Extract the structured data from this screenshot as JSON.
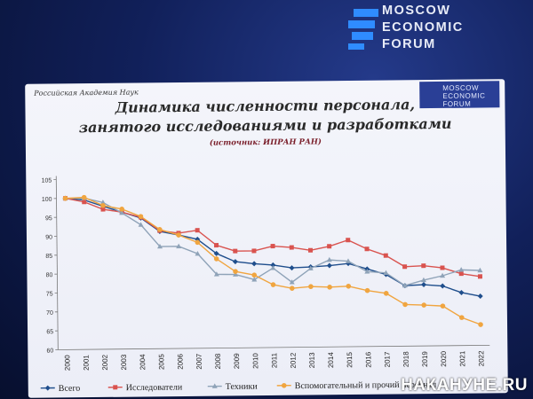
{
  "forum": {
    "line1": "MOSCOW",
    "line2": "ECONOMIC",
    "line3": "FORUM"
  },
  "slide": {
    "emblem": "Российская Академия Наук",
    "logo_line1": "MOSCOW",
    "logo_line2": "ECONOMIC",
    "logo_line3": "FORUM"
  },
  "watermark": "НАКАНУНЕ.RU",
  "chart_data": {
    "type": "line",
    "title": "Динамика численности персонала,",
    "title_line2": "занятого исследованиями и разработками",
    "subtitle": "(источник: ИПРАН РАН)",
    "x": [
      "2000",
      "2001",
      "2002",
      "2003",
      "2004",
      "2005",
      "2006",
      "2007",
      "2008",
      "2009",
      "2010",
      "2011",
      "2012",
      "2013",
      "2014",
      "2015",
      "2016",
      "2017",
      "2018",
      "2019",
      "2020",
      "2021",
      "2022"
    ],
    "ylim": [
      60,
      105
    ],
    "yticks": [
      60,
      65,
      70,
      75,
      80,
      85,
      90,
      95,
      100,
      105
    ],
    "grid": false,
    "legend": "bottom",
    "colors": {
      "total": "#1f4e8c",
      "researchers": "#d9534f",
      "technicians": "#8fa3b8",
      "support": "#f0a540"
    },
    "series": [
      {
        "name": "Всего",
        "key": "total",
        "marker": "diamond",
        "values": [
          100,
          99.5,
          97.8,
          96.2,
          94.6,
          91,
          90,
          88.8,
          85,
          82.8,
          82.2,
          81.8,
          81,
          81.2,
          81.5,
          82,
          80.5,
          79,
          76,
          76.2,
          75.8,
          74,
          73
        ]
      },
      {
        "name": "Исследователи",
        "key": "researchers",
        "marker": "square",
        "values": [
          100,
          99,
          97,
          96.2,
          94.8,
          91.2,
          90.5,
          91.2,
          87.2,
          85.6,
          85.6,
          86.8,
          86.4,
          85.6,
          86.6,
          88.2,
          85.8,
          84,
          81,
          81.2,
          80.6,
          79,
          78.2
        ]
      },
      {
        "name": "Техники",
        "key": "technicians",
        "marker": "triangle",
        "values": [
          100,
          100,
          98.8,
          96,
          92.8,
          87,
          87,
          85,
          79.5,
          79.4,
          78,
          81,
          77.2,
          80.8,
          83,
          82.6,
          79.8,
          79.4,
          76,
          77.4,
          78.5,
          80,
          79.8
        ]
      },
      {
        "name": "Вспомогательный и прочий персонал",
        "key": "support",
        "marker": "circle",
        "values": [
          100,
          100.2,
          98,
          97,
          95,
          91.5,
          90,
          88,
          83.6,
          80.2,
          79.2,
          76.6,
          75.6,
          76,
          75.8,
          76,
          74.8,
          74,
          71,
          70.8,
          70.5,
          67.4,
          65.5
        ]
      }
    ]
  }
}
